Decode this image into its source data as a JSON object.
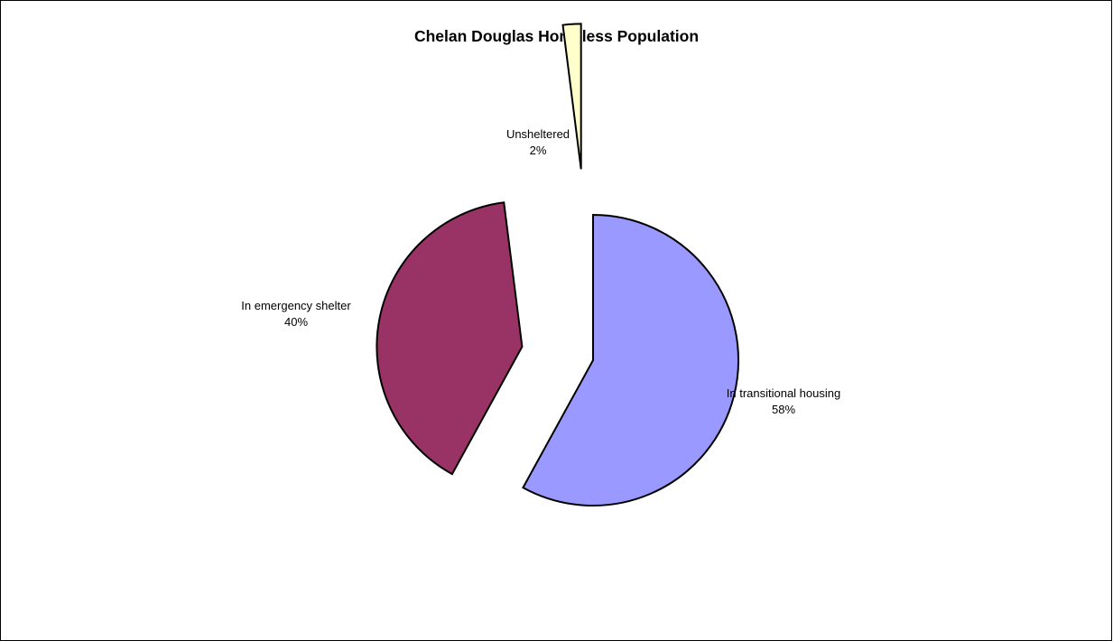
{
  "chart_data": {
    "type": "pie",
    "title": "Chelan Douglas Homeless Population",
    "exploded": true,
    "slices": [
      {
        "label": "In transitional housing",
        "percent_label": "58%",
        "value": 58,
        "color": "#9999ff"
      },
      {
        "label": "In emergency shelter",
        "percent_label": "40%",
        "value": 40,
        "color": "#993366"
      },
      {
        "label": "Unsheltered",
        "percent_label": "2%",
        "value": 2,
        "color": "#ffffcc"
      }
    ]
  }
}
